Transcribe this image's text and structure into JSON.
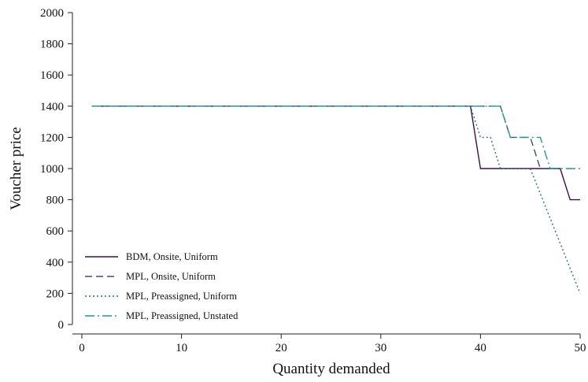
{
  "chart_data": {
    "type": "line",
    "title": "",
    "xlabel": "Quantity demanded",
    "ylabel": "Voucher price",
    "xlim": [
      0,
      50
    ],
    "ylim": [
      0,
      2000
    ],
    "xticks": [
      0,
      10,
      20,
      30,
      40,
      50
    ],
    "yticks": [
      0,
      200,
      400,
      600,
      800,
      1000,
      1200,
      1400,
      1600,
      1800,
      2000
    ],
    "grid": false,
    "legend_position": "bottom-left",
    "series": [
      {
        "name": "BDM, Onsite, Uniform",
        "color": "#3b0f4f",
        "dash": "solid",
        "points": [
          [
            1,
            1400
          ],
          [
            39,
            1400
          ],
          [
            40,
            1000
          ],
          [
            48,
            1000
          ],
          [
            49,
            800
          ],
          [
            50,
            800
          ]
        ]
      },
      {
        "name": "MPL, Onsite, Uniform",
        "color": "#3e4a8a",
        "dash": "dash",
        "points": [
          [
            1,
            1400
          ],
          [
            42,
            1400
          ],
          [
            43,
            1200
          ],
          [
            45,
            1200
          ],
          [
            46,
            1000
          ],
          [
            48,
            1000
          ]
        ]
      },
      {
        "name": "MPL, Preassigned, Uniform",
        "color": "#2a6f8e",
        "dash": "dot",
        "points": [
          [
            1,
            1400
          ],
          [
            39,
            1400
          ],
          [
            40,
            1200
          ],
          [
            41,
            1200
          ],
          [
            42,
            1000
          ],
          [
            45,
            1000
          ],
          [
            50,
            200
          ]
        ]
      },
      {
        "name": "MPL, Preassigned, Unstated",
        "color": "#1f9e89",
        "dash": "dashdot",
        "points": [
          [
            1,
            1400
          ],
          [
            42,
            1400
          ],
          [
            43,
            1200
          ],
          [
            46,
            1200
          ],
          [
            47,
            1000
          ],
          [
            50,
            1000
          ]
        ]
      }
    ]
  }
}
